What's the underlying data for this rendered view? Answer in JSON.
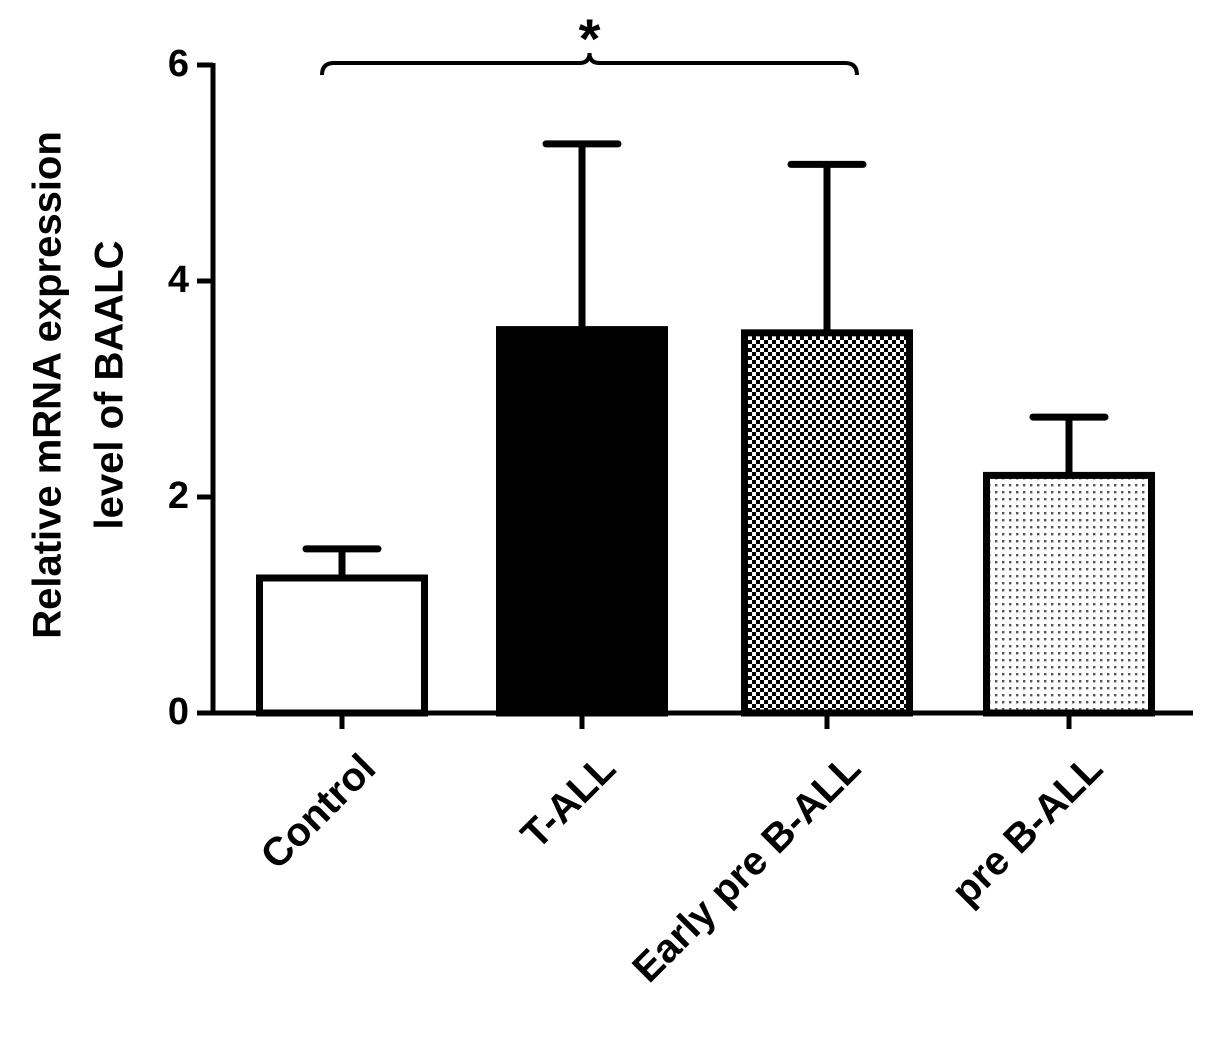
{
  "chart_data": {
    "type": "bar",
    "categories": [
      "Control",
      "T-ALL",
      "Early pre B-ALL",
      "pre B-ALL"
    ],
    "values": [
      1.25,
      3.55,
      3.52,
      2.2
    ],
    "error_upper": [
      1.52,
      5.27,
      5.08,
      2.74
    ],
    "fills": [
      "white",
      "solid",
      "dense-checker",
      "light-dots"
    ],
    "ylabel_lines": [
      "Relative mRNA expression",
      "level of BAALC"
    ],
    "xlabel": "",
    "ylim": [
      0,
      6
    ],
    "yticks": [
      0,
      2,
      4,
      6
    ],
    "grid": false,
    "legend": "none",
    "significance": {
      "from": "Control",
      "to": "Early pre B-ALL",
      "label": "*"
    },
    "colors": {
      "bar_outline": "#000000",
      "solid_fill": "#000000",
      "background": "#ffffff"
    }
  }
}
